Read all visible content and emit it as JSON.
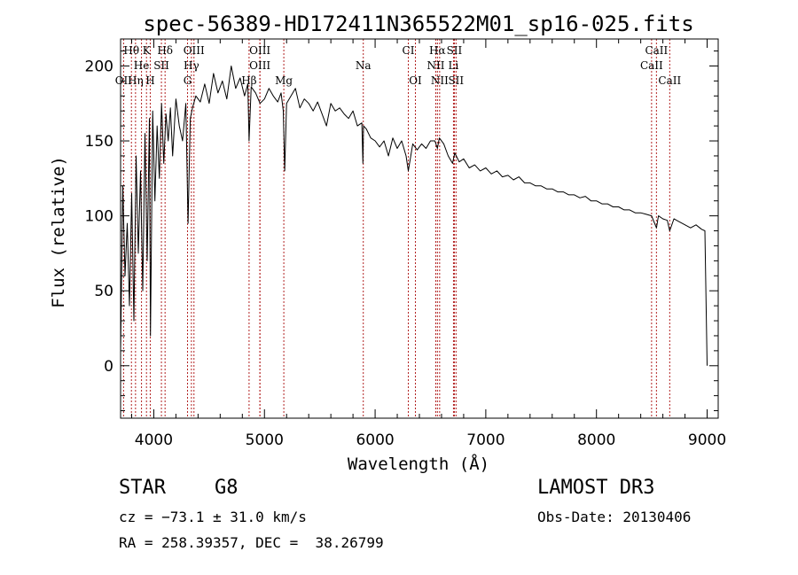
{
  "chart_data": {
    "type": "line",
    "title": "spec-56389-HD172411N365522M01_sp16-025.fits",
    "xlabel": "Wavelength (Å)",
    "ylabel": "Flux (relative)",
    "xlim": [
      3700,
      9100
    ],
    "ylim": [
      -35,
      218
    ],
    "xticks": [
      4000,
      5000,
      6000,
      7000,
      8000,
      9000
    ],
    "yticks": [
      0,
      50,
      100,
      150,
      200
    ],
    "series": [
      {
        "name": "spectrum",
        "x": [
          3700,
          3720,
          3740,
          3760,
          3780,
          3800,
          3820,
          3840,
          3860,
          3880,
          3900,
          3920,
          3940,
          3960,
          3970,
          3990,
          4010,
          4030,
          4050,
          4070,
          4090,
          4110,
          4130,
          4150,
          4170,
          4200,
          4230,
          4260,
          4290,
          4310,
          4330,
          4350,
          4380,
          4420,
          4460,
          4500,
          4540,
          4580,
          4620,
          4660,
          4700,
          4740,
          4780,
          4820,
          4850,
          4861,
          4880,
          4920,
          4960,
          5000,
          5040,
          5080,
          5120,
          5150,
          5170,
          5183,
          5200,
          5240,
          5280,
          5320,
          5360,
          5400,
          5440,
          5480,
          5520,
          5560,
          5600,
          5640,
          5680,
          5720,
          5760,
          5800,
          5840,
          5880,
          5890,
          5895,
          5920,
          5960,
          6000,
          6040,
          6080,
          6120,
          6160,
          6200,
          6240,
          6280,
          6300,
          6340,
          6380,
          6420,
          6460,
          6500,
          6540,
          6563,
          6580,
          6620,
          6660,
          6700,
          6720,
          6760,
          6800,
          6850,
          6900,
          6950,
          7000,
          7050,
          7100,
          7150,
          7200,
          7250,
          7300,
          7350,
          7400,
          7450,
          7500,
          7550,
          7600,
          7650,
          7700,
          7750,
          7800,
          7850,
          7900,
          7950,
          8000,
          8050,
          8100,
          8150,
          8200,
          8250,
          8300,
          8350,
          8400,
          8450,
          8498,
          8520,
          8542,
          8560,
          8600,
          8640,
          8662,
          8700,
          8750,
          8800,
          8850,
          8900,
          8950,
          8980,
          9000
        ],
        "y": [
          10,
          120,
          60,
          95,
          40,
          115,
          30,
          140,
          75,
          130,
          50,
          155,
          70,
          165,
          20,
          170,
          110,
          160,
          125,
          175,
          135,
          168,
          150,
          172,
          140,
          178,
          160,
          150,
          175,
          95,
          165,
          172,
          180,
          176,
          188,
          175,
          195,
          182,
          190,
          178,
          200,
          185,
          192,
          180,
          188,
          150,
          186,
          182,
          175,
          178,
          185,
          180,
          176,
          182,
          170,
          130,
          175,
          180,
          185,
          172,
          178,
          175,
          170,
          176,
          168,
          160,
          175,
          170,
          172,
          168,
          165,
          170,
          160,
          162,
          135,
          160,
          158,
          152,
          150,
          146,
          150,
          140,
          152,
          145,
          150,
          140,
          130,
          148,
          144,
          148,
          145,
          150,
          150,
          145,
          152,
          148,
          140,
          135,
          142,
          136,
          138,
          132,
          134,
          130,
          132,
          128,
          130,
          126,
          127,
          124,
          126,
          122,
          122,
          120,
          120,
          118,
          118,
          116,
          116,
          114,
          114,
          112,
          113,
          110,
          110,
          108,
          108,
          106,
          106,
          104,
          104,
          102,
          102,
          101,
          100,
          96,
          92,
          100,
          98,
          97,
          90,
          98,
          96,
          94,
          92,
          94,
          91,
          90,
          0
        ]
      }
    ],
    "spectral_lines": [
      {
        "label": "Hθ",
        "x": 3798,
        "row": 1
      },
      {
        "label": "K",
        "x": 3934,
        "row": 1
      },
      {
        "label": "Hδ",
        "x": 4102,
        "row": 1
      },
      {
        "label": "OIII",
        "x": 4363,
        "row": 1
      },
      {
        "label": "OIII",
        "x": 4959,
        "row": 1
      },
      {
        "label": "CI",
        "x": 6300,
        "row": 1
      },
      {
        "label": "Hα",
        "x": 6563,
        "row": 1
      },
      {
        "label": "SII",
        "x": 6716,
        "row": 1
      },
      {
        "label": "CaII",
        "x": 8542,
        "row": 1
      },
      {
        "label": "He",
        "x": 3889,
        "row": 2
      },
      {
        "label": "SII",
        "x": 4069,
        "row": 2
      },
      {
        "label": "Hγ",
        "x": 4340,
        "row": 2
      },
      {
        "label": "OIII",
        "x": 4959,
        "row": 2
      },
      {
        "label": "Na",
        "x": 5893,
        "row": 2
      },
      {
        "label": "NII",
        "x": 6548,
        "row": 2
      },
      {
        "label": "Li",
        "x": 6708,
        "row": 2
      },
      {
        "label": "CaII",
        "x": 8498,
        "row": 2
      },
      {
        "label": "OII",
        "x": 3727,
        "row": 3
      },
      {
        "label": "Hη",
        "x": 3835,
        "row": 3
      },
      {
        "label": "H",
        "x": 3968,
        "row": 3
      },
      {
        "label": "G",
        "x": 4305,
        "row": 3
      },
      {
        "label": "Hβ",
        "x": 4861,
        "row": 3
      },
      {
        "label": "Mg",
        "x": 5175,
        "row": 3
      },
      {
        "label": "OI",
        "x": 6364,
        "row": 3
      },
      {
        "label": "NII",
        "x": 6583,
        "row": 3
      },
      {
        "label": "SII",
        "x": 6731,
        "row": 3
      },
      {
        "label": "CaII",
        "x": 8662,
        "row": 3
      }
    ],
    "colors": {
      "spectrum": "#000000",
      "lines": "#b22222"
    }
  },
  "info": {
    "object_class": "STAR",
    "subclass": "G8",
    "survey": "LAMOST DR3",
    "redshift": "cz = −73.1 ± 31.0 km/s",
    "obs_date": "Obs-Date: 20130406",
    "coords": "RA = 258.39357, DEC =  38.26799"
  }
}
